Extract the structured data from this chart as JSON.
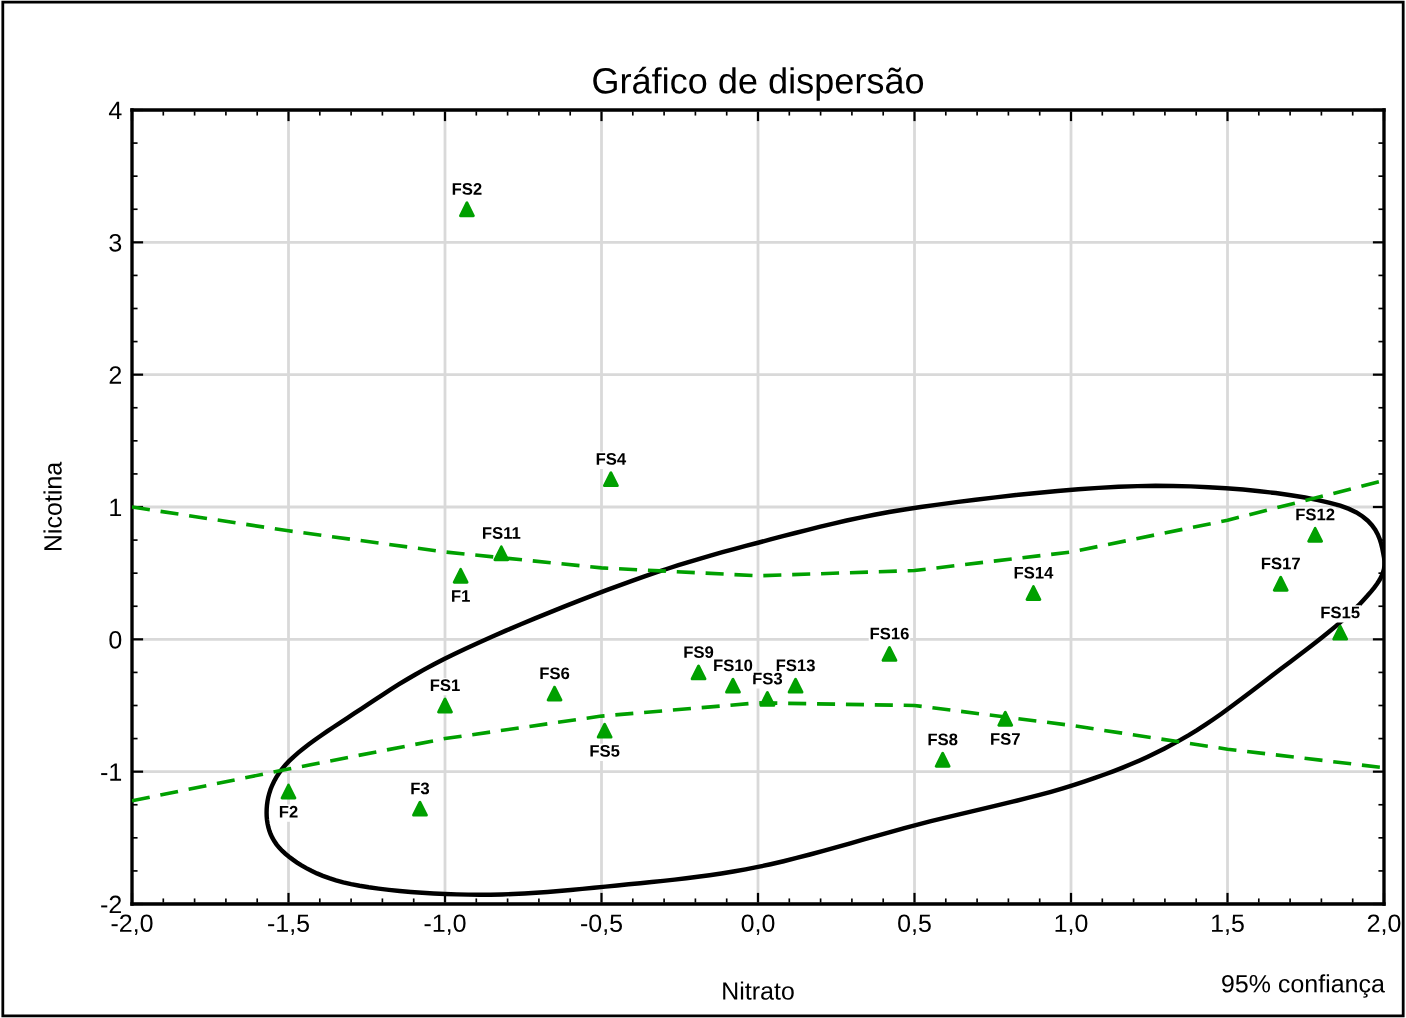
{
  "chart_data": {
    "type": "scatter",
    "title": "Gráfico de dispersão",
    "xlabel": "Nitrato",
    "ylabel": "Nicotina",
    "xlim": [
      -2,
      2
    ],
    "ylim": [
      -2,
      4
    ],
    "xticks": [
      {
        "value": -2,
        "label": "-2,0"
      },
      {
        "value": -1.5,
        "label": "-1,5"
      },
      {
        "value": -1,
        "label": "-1,0"
      },
      {
        "value": -0.5,
        "label": "-0,5"
      },
      {
        "value": 0,
        "label": "0,0"
      },
      {
        "value": 0.5,
        "label": "0,5"
      },
      {
        "value": 1,
        "label": "1,0"
      },
      {
        "value": 1.5,
        "label": "1,5"
      },
      {
        "value": 2,
        "label": "2,0"
      }
    ],
    "yticks": [
      {
        "value": -2,
        "label": "-2"
      },
      {
        "value": -1,
        "label": "-1"
      },
      0,
      1,
      2,
      3,
      4
    ],
    "grid": true,
    "series": [
      {
        "color": "#00a000",
        "marker": "triangle",
        "x": [
          -0.93,
          -0.47,
          -0.82,
          -0.95,
          1.78,
          1.67,
          0.88,
          1.86,
          0.42,
          0.12,
          0.03,
          0.79,
          0.59,
          -0.19,
          -0.08,
          -1.0,
          -0.65,
          -0.49,
          -1.5,
          -1.08
        ],
        "values": [
          3.25,
          1.21,
          0.65,
          0.48,
          0.79,
          0.42,
          0.35,
          0.05,
          -0.11,
          -0.35,
          -0.45,
          -0.6,
          -0.91,
          -0.25,
          -0.35,
          -0.5,
          -0.41,
          -0.69,
          -1.15,
          -1.28
        ]
      },
      {
        "type": "line",
        "color": "#00a000",
        "line_style": "dashed",
        "x": [
          -2,
          -1.5,
          -1,
          -0.5,
          0,
          0.5,
          1,
          1.5,
          2
        ],
        "values": [
          1.0,
          0.82,
          0.66,
          0.54,
          0.48,
          0.52,
          0.66,
          0.9,
          1.2
        ]
      },
      {
        "type": "line",
        "color": "#00a000",
        "line_style": "dashed",
        "x": [
          -2,
          -1.5,
          -1,
          -0.5,
          0,
          0.5,
          1,
          1.5,
          2
        ],
        "values": [
          -1.22,
          -0.98,
          -0.75,
          -0.58,
          -0.48,
          -0.5,
          -0.65,
          -0.83,
          -0.97
        ]
      }
    ],
    "annotations": [
      {
        "text": "FS2",
        "x": -0.93,
        "y": 3.25
      },
      {
        "text": "FS4",
        "x": -0.47,
        "y": 1.21
      },
      {
        "text": "FS11",
        "x": -0.82,
        "y": 0.65
      },
      {
        "text": "F1",
        "x": -0.95,
        "y": 0.48
      },
      {
        "text": "FS12",
        "x": 1.78,
        "y": 0.79
      },
      {
        "text": "FS17",
        "x": 1.67,
        "y": 0.42
      },
      {
        "text": "FS14",
        "x": 0.88,
        "y": 0.35
      },
      {
        "text": "FS15",
        "x": 1.86,
        "y": 0.05
      },
      {
        "text": "FS16",
        "x": 0.42,
        "y": -0.11
      },
      {
        "text": "FS13",
        "x": 0.12,
        "y": -0.35
      },
      {
        "text": "FS3",
        "x": 0.03,
        "y": -0.45
      },
      {
        "text": "FS7",
        "x": 0.79,
        "y": -0.6
      },
      {
        "text": "FS8",
        "x": 0.59,
        "y": -0.91
      },
      {
        "text": "FS9",
        "x": -0.19,
        "y": -0.25
      },
      {
        "text": "FS10",
        "x": -0.08,
        "y": -0.35
      },
      {
        "text": "FS1",
        "x": -1.0,
        "y": -0.5
      },
      {
        "text": "FS6",
        "x": -0.65,
        "y": -0.41
      },
      {
        "text": "FS5",
        "x": -0.49,
        "y": -0.69
      },
      {
        "text": "F2",
        "x": -1.5,
        "y": -1.15
      },
      {
        "text": "F3",
        "x": -1.08,
        "y": -1.28
      },
      "95% confiança"
    ]
  }
}
